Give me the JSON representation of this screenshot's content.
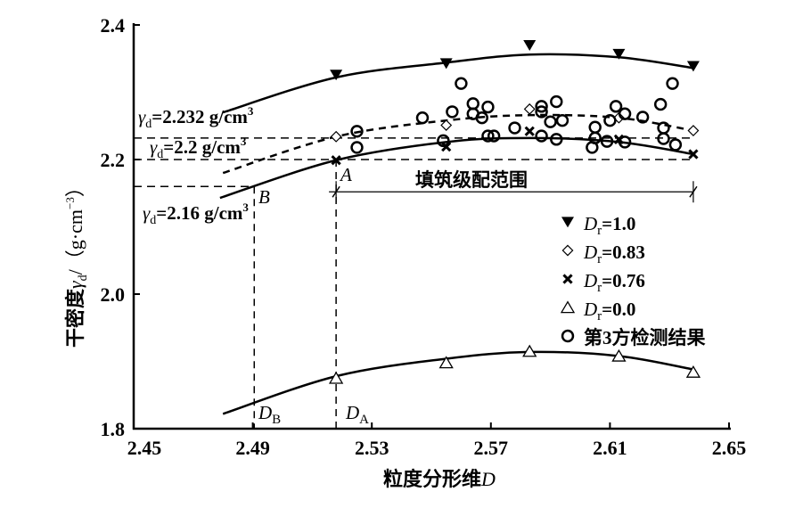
{
  "chart_data": {
    "type": "scatter",
    "xlabel": "粒度分形维D",
    "xlabel_main": "粒度分形维",
    "xlabel_var": "D",
    "ylabel": "干密度γd/（g·cm−3）",
    "ylabel_main": "干密度",
    "ylabel_var": "γ",
    "ylabel_sub": "d",
    "ylabel_unit": "/（g·cm",
    "ylabel_sup": "−3",
    "ylabel_close": "）",
    "xlim": [
      2.45,
      2.65
    ],
    "ylim": [
      1.8,
      2.4
    ],
    "xticks": [
      "2.45",
      "2.49",
      "2.53",
      "2.57",
      "2.61",
      "2.65"
    ],
    "yticks": [
      "1.8",
      "2.0",
      "2.2",
      "2.4"
    ],
    "grid": false,
    "legend_position": "right-middle",
    "series": [
      {
        "name": "Dr=1.0",
        "label_var": "D",
        "label_sub": "r",
        "label_val": "=1.0",
        "marker": "triangle-down-filled",
        "line": "solid",
        "x": [
          2.518,
          2.555,
          2.583,
          2.613,
          2.638
        ],
        "y": [
          2.326,
          2.343,
          2.37,
          2.357,
          2.339
        ],
        "curve": [
          [
            2.48,
            2.27
          ],
          [
            2.518,
            2.322
          ],
          [
            2.555,
            2.344
          ],
          [
            2.583,
            2.356
          ],
          [
            2.613,
            2.352
          ],
          [
            2.638,
            2.336
          ]
        ]
      },
      {
        "name": "Dr=0.83",
        "label_var": "D",
        "label_sub": "r",
        "label_val": "=0.83",
        "marker": "diamond-open",
        "line": "dashed",
        "x": [
          2.518,
          2.555,
          2.583,
          2.613,
          2.638
        ],
        "y": [
          2.234,
          2.251,
          2.275,
          2.262,
          2.243
        ],
        "curve": [
          [
            2.48,
            2.18
          ],
          [
            2.518,
            2.234
          ],
          [
            2.555,
            2.258
          ],
          [
            2.583,
            2.266
          ],
          [
            2.613,
            2.262
          ],
          [
            2.638,
            2.243
          ]
        ]
      },
      {
        "name": "Dr=0.76",
        "label_var": "D",
        "label_sub": "r",
        "label_val": "=0.76",
        "marker": "x",
        "line": "solid",
        "x": [
          2.518,
          2.555,
          2.583,
          2.613,
          2.638
        ],
        "y": [
          2.199,
          2.219,
          2.242,
          2.23,
          2.208
        ],
        "curve": [
          [
            2.479,
            2.143
          ],
          [
            2.518,
            2.199
          ],
          [
            2.555,
            2.226
          ],
          [
            2.583,
            2.232
          ],
          [
            2.613,
            2.226
          ],
          [
            2.638,
            2.208
          ]
        ]
      },
      {
        "name": "Dr=0.0",
        "label_var": "D",
        "label_sub": "r",
        "label_val": "=0.0",
        "marker": "triangle-up-open",
        "line": "solid",
        "x": [
          2.518,
          2.555,
          2.583,
          2.613,
          2.638
        ],
        "y": [
          1.875,
          1.898,
          1.915,
          1.908,
          1.884
        ],
        "curve": [
          [
            2.48,
            1.822
          ],
          [
            2.518,
            1.878
          ],
          [
            2.555,
            1.904
          ],
          [
            2.583,
            1.914
          ],
          [
            2.613,
            1.908
          ],
          [
            2.638,
            1.888
          ]
        ]
      },
      {
        "name": "第3方检测结果",
        "label_text": "第3方检测结果",
        "marker": "circle-open",
        "line": "none",
        "x": [
          2.525,
          2.525,
          2.547,
          2.554,
          2.557,
          2.56,
          2.564,
          2.564,
          2.567,
          2.569,
          2.569,
          2.571,
          2.578,
          2.587,
          2.587,
          2.59,
          2.592,
          2.594,
          2.587,
          2.592,
          2.605,
          2.605,
          2.604,
          2.612,
          2.61,
          2.615,
          2.609,
          2.615,
          2.621,
          2.627,
          2.631,
          2.628,
          2.628,
          2.632
        ],
        "y": [
          2.242,
          2.218,
          2.262,
          2.228,
          2.271,
          2.313,
          2.283,
          2.268,
          2.262,
          2.278,
          2.235,
          2.235,
          2.247,
          2.279,
          2.271,
          2.256,
          2.286,
          2.258,
          2.235,
          2.23,
          2.248,
          2.232,
          2.218,
          2.279,
          2.258,
          2.268,
          2.227,
          2.226,
          2.263,
          2.282,
          2.313,
          2.247,
          2.231,
          2.222
        ]
      }
    ],
    "reference_lines": {
      "h": [
        {
          "y": 2.232,
          "x_end": 2.638
        },
        {
          "y": 2.2,
          "x_end": 2.638
        },
        {
          "y": 2.16,
          "x_end": 2.4905
        }
      ],
      "v": [
        {
          "x": 2.518,
          "y_top": 2.2
        },
        {
          "x": 2.4905,
          "y_top": 2.16
        }
      ],
      "range": {
        "x": [
          2.518,
          2.638
        ],
        "y": 2.152
      }
    },
    "annotations": {
      "gd2232": {
        "var": "γ",
        "sub": "d",
        "val": "=2.232  g/cm",
        "sup": "3"
      },
      "gd22": {
        "var": "γ",
        "sub": "d",
        "val": "=2.2 g/cm",
        "sup": "3"
      },
      "gd216": {
        "var": "γ",
        "sub": "d",
        "val": "=2.16  g/cm",
        "sup": "3"
      },
      "A": "A",
      "B": "B",
      "DA": {
        "var": "D",
        "sub": "A"
      },
      "DB": {
        "var": "D",
        "sub": "B"
      },
      "range_label": "填筑级配范围"
    }
  }
}
